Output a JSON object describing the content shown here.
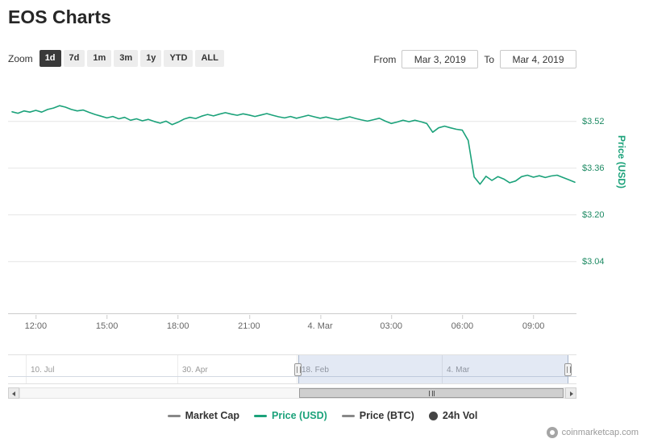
{
  "header": {
    "title": "EOS Charts"
  },
  "toolbar": {
    "zoom_label": "Zoom",
    "zoom_options": [
      {
        "label": "1d",
        "selected": true
      },
      {
        "label": "7d",
        "selected": false
      },
      {
        "label": "1m",
        "selected": false
      },
      {
        "label": "3m",
        "selected": false
      },
      {
        "label": "1y",
        "selected": false
      },
      {
        "label": "YTD",
        "selected": false
      },
      {
        "label": "ALL",
        "selected": false
      }
    ],
    "from_label": "From",
    "from_value": "Mar 3, 2019",
    "to_label": "To",
    "to_value": "Mar 4, 2019"
  },
  "chart_data": {
    "type": "line",
    "title": "EOS price, USD, Mar 3 2019 to Mar 4 2019",
    "series": [
      {
        "name": "Price (USD)",
        "color": "#1ba27a",
        "values": [
          3.553,
          3.548,
          3.556,
          3.552,
          3.558,
          3.552,
          3.561,
          3.566,
          3.574,
          3.569,
          3.561,
          3.556,
          3.559,
          3.551,
          3.544,
          3.538,
          3.532,
          3.537,
          3.529,
          3.534,
          3.524,
          3.529,
          3.522,
          3.527,
          3.52,
          3.514,
          3.521,
          3.509,
          3.517,
          3.528,
          3.534,
          3.53,
          3.538,
          3.544,
          3.539,
          3.545,
          3.55,
          3.545,
          3.541,
          3.546,
          3.542,
          3.537,
          3.542,
          3.547,
          3.541,
          3.536,
          3.532,
          3.537,
          3.531,
          3.536,
          3.541,
          3.536,
          3.531,
          3.535,
          3.53,
          3.526,
          3.531,
          3.536,
          3.53,
          3.525,
          3.521,
          3.526,
          3.531,
          3.521,
          3.513,
          3.518,
          3.524,
          3.519,
          3.524,
          3.519,
          3.513,
          3.483,
          3.498,
          3.504,
          3.498,
          3.493,
          3.49,
          3.455,
          3.33,
          3.305,
          3.332,
          3.318,
          3.331,
          3.323,
          3.31,
          3.316,
          3.331,
          3.336,
          3.329,
          3.334,
          3.328,
          3.333,
          3.336,
          3.328,
          3.32,
          3.312
        ]
      }
    ],
    "x_ticks": [
      "12:00",
      "15:00",
      "18:00",
      "21:00",
      "4. Mar",
      "03:00",
      "06:00",
      "09:00"
    ],
    "x_tick_indices": [
      4,
      16,
      28,
      40,
      52,
      64,
      76,
      88
    ],
    "y_ticks": [
      "$3.52",
      "$3.36",
      "$3.20",
      "$3.04"
    ],
    "y_tick_values": [
      3.52,
      3.36,
      3.2,
      3.04
    ],
    "ylim": [
      2.86,
      3.66
    ],
    "y_axis_label": "Price (USD)",
    "grid": "horizontal",
    "legend_position": "bottom"
  },
  "navigator": {
    "labels": [
      "10. Jul",
      "30. Apr",
      "18. Feb",
      "4. Mar"
    ]
  },
  "legend": {
    "items": [
      {
        "label": "Market Cap",
        "color": "#888888",
        "marker": "line",
        "active": false
      },
      {
        "label": "Price (USD)",
        "color": "#1ba27a",
        "marker": "line",
        "active": true
      },
      {
        "label": "Price (BTC)",
        "color": "#888888",
        "marker": "line",
        "active": false
      },
      {
        "label": "24h Vol",
        "color": "#444444",
        "marker": "circle",
        "active": false
      }
    ]
  },
  "footer": {
    "watermark": "coinmarketcap.com"
  }
}
